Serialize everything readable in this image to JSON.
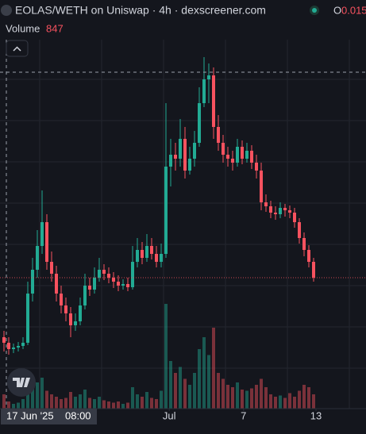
{
  "chart_data": {
    "type": "candlestick",
    "title": "EOLAS/WETH on Uniswap · 4h · dexscreener.com",
    "ohlc_label": "O",
    "ohlc_open": "0.015",
    "volume_label": "Volume",
    "volume_value": "847",
    "crosshair_date": "17 Jun '25",
    "crosshair_time": "08:00",
    "up_color": "#22ab94",
    "down_color": "#f7525f",
    "ylim": [
      0,
      46
    ],
    "vlim": [
      0,
      1000
    ],
    "xticks": [
      {
        "value": 34.7,
        "label": "Jul"
      },
      {
        "value": 50.3,
        "label": "7"
      },
      {
        "value": 65.5,
        "label": "13"
      }
    ],
    "open": [
      9.0,
      8.3,
      7.5,
      7.7,
      7.9,
      8.3,
      14.5,
      17.5,
      20.5,
      23.5,
      18.5,
      17,
      14.5,
      13,
      12,
      10.5,
      11,
      13,
      15.5,
      15,
      16.5,
      17.5,
      17,
      16.5,
      16,
      15.5,
      15.7,
      15.3,
      18.5,
      20,
      19,
      20.5,
      19.5,
      18.5,
      19.5,
      30.5,
      32,
      31.5,
      34,
      30,
      31.5,
      33.5,
      38.5,
      41.5,
      42,
      35.5,
      33.5,
      32,
      31.5,
      31,
      33,
      31.5,
      32.5,
      31,
      30,
      26,
      25.5,
      24.7,
      24.5,
      25.3,
      25,
      24.7,
      23.5,
      21.5,
      20,
      18.5
    ],
    "high": [
      9.8,
      9.0,
      8.2,
      8.4,
      9.0,
      16.0,
      19.0,
      22.5,
      27.5,
      24.5,
      19.8,
      18.0,
      15.5,
      14.0,
      12.8,
      12.0,
      14.0,
      17.0,
      16.5,
      17.8,
      19.0,
      18.2,
      17.8,
      17.2,
      16.8,
      16.3,
      16.5,
      20.5,
      21.5,
      21.0,
      22.0,
      21.5,
      20.5,
      20.8,
      38.5,
      34.0,
      33.5,
      36.5,
      35.5,
      33.0,
      35.0,
      40.5,
      44.3,
      43.5,
      43.0,
      37.0,
      34.5,
      33.0,
      32.5,
      34.0,
      33.8,
      33.5,
      33.2,
      32.0,
      31.0,
      27.0,
      26.2,
      25.5,
      26.0,
      25.8,
      25.6,
      25.3,
      24.0,
      22.2,
      20.6,
      19.0
    ],
    "low": [
      7.2,
      6.8,
      7.0,
      7.2,
      7.5,
      8.0,
      13.5,
      16.5,
      19.5,
      17.5,
      16.0,
      13.5,
      12.0,
      11.0,
      9.0,
      9.8,
      10.5,
      12.5,
      14.2,
      14.5,
      16.0,
      16.2,
      15.8,
      15.2,
      14.8,
      15.0,
      14.8,
      15.0,
      17.8,
      18.2,
      18.5,
      18.8,
      17.8,
      17.8,
      19.0,
      28.0,
      30.0,
      30.5,
      29.0,
      29.5,
      30.5,
      33.0,
      38.0,
      38.5,
      34.0,
      32.5,
      31.0,
      30.5,
      30.0,
      30.5,
      30.8,
      31.0,
      30.2,
      29.0,
      25.0,
      24.8,
      24.0,
      23.8,
      24.0,
      24.2,
      24.0,
      22.8,
      20.8,
      19.2,
      17.8,
      16.0
    ],
    "close": [
      8.3,
      7.5,
      7.7,
      7.9,
      8.3,
      14.5,
      17.5,
      20.5,
      23.5,
      18.5,
      17,
      14.5,
      13,
      12,
      10.5,
      11,
      13,
      15.5,
      15,
      16.5,
      17.5,
      17,
      16.5,
      16,
      15.5,
      15.7,
      15.3,
      18.5,
      20,
      19,
      20.5,
      19.5,
      18.5,
      19.5,
      30.5,
      32,
      31.5,
      34,
      30,
      31.5,
      33.5,
      38.5,
      41.5,
      42,
      35.5,
      33.5,
      32,
      31.5,
      31,
      33,
      31.5,
      32.5,
      31,
      30,
      26,
      25.5,
      24.7,
      24.5,
      25.3,
      25,
      24.7,
      23.5,
      21.5,
      20,
      18.5,
      16.5
    ],
    "volume": [
      120,
      60,
      40,
      50,
      80,
      200,
      180,
      220,
      260,
      150,
      120,
      100,
      80,
      90,
      140,
      100,
      120,
      160,
      90,
      80,
      100,
      70,
      60,
      50,
      60,
      40,
      50,
      180,
      120,
      100,
      140,
      90,
      80,
      150,
      880,
      400,
      300,
      350,
      250,
      200,
      300,
      500,
      600,
      450,
      680,
      300,
      250,
      200,
      180,
      220,
      160,
      150,
      170,
      200,
      250,
      180,
      120,
      100,
      110,
      90,
      130,
      100,
      150,
      200,
      180,
      120
    ]
  }
}
